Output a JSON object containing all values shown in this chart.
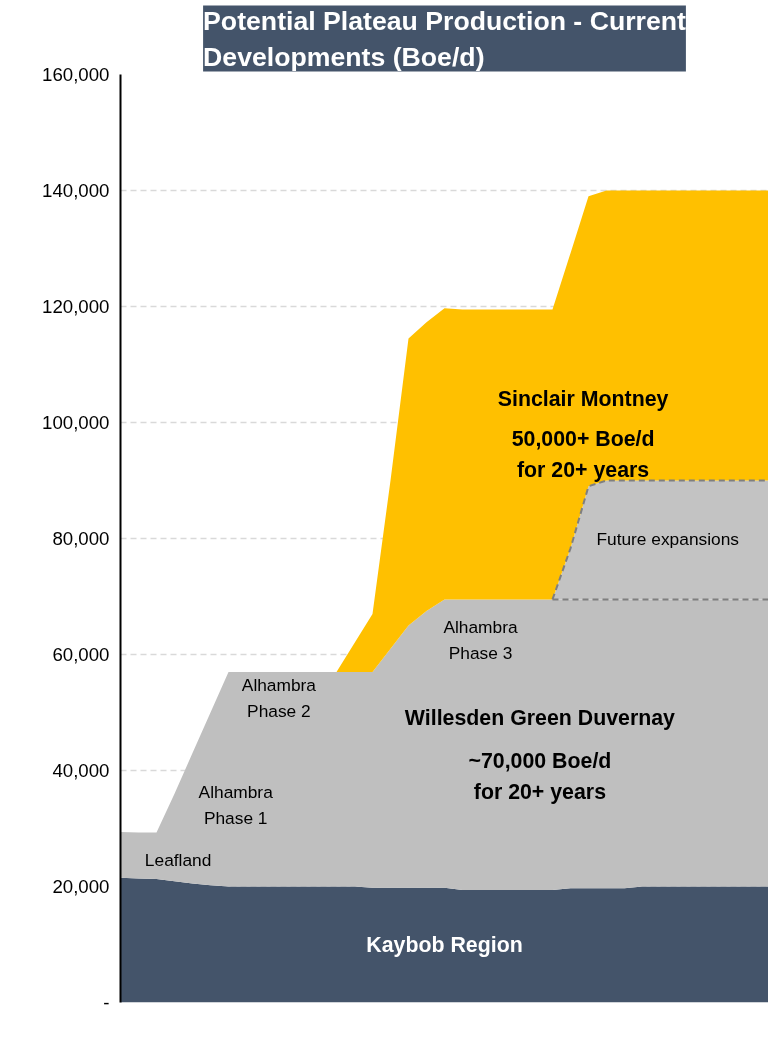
{
  "chart_data": {
    "type": "area",
    "stacked": true,
    "title": "Potential Plateau Production - Current Developments (Boe/d)",
    "categories": [
      null,
      null,
      null,
      null,
      null,
      null,
      null,
      null,
      null,
      null,
      null,
      null,
      null,
      null,
      null,
      null,
      null,
      null,
      null,
      null,
      null,
      null,
      null,
      null,
      null,
      null,
      null,
      null,
      null,
      null,
      null,
      null,
      null,
      null,
      null,
      null,
      null
    ],
    "series": [
      {
        "name": "Kaybob Region",
        "color": "#44546a",
        "values": [
          21500,
          21400,
          21300,
          20900,
          20500,
          20200,
          20000,
          20000,
          20000,
          20000,
          20000,
          20000,
          20000,
          20000,
          19800,
          19800,
          19800,
          19800,
          19800,
          19400,
          19400,
          19400,
          19400,
          19400,
          19400,
          19700,
          19700,
          19700,
          19700,
          20000,
          20000,
          20000,
          20000,
          20000,
          20000,
          20000,
          20000
        ]
      },
      {
        "name": "Willesden Green Duvernay",
        "color": "#bfbfbf",
        "values": [
          7900,
          7900,
          8000,
          15100,
          22500,
          29800,
          37000,
          37000,
          37000,
          37000,
          37000,
          37000,
          37000,
          37000,
          37200,
          41200,
          45200,
          47700,
          49700,
          50100,
          50100,
          50100,
          50100,
          50100,
          50100,
          49800,
          49800,
          49800,
          49800,
          49500,
          49500,
          49500,
          49500,
          49500,
          49500,
          49500,
          49500
        ]
      },
      {
        "name": "Future expansions",
        "color": "#c3c3c3",
        "line_style": "dashed",
        "values": [
          0,
          0,
          0,
          0,
          0,
          0,
          0,
          0,
          0,
          0,
          0,
          0,
          0,
          0,
          0,
          0,
          0,
          0,
          0,
          0,
          0,
          0,
          0,
          0,
          0,
          8800,
          19500,
          20500,
          20500,
          20500,
          20500,
          20500,
          20500,
          20500,
          20500,
          20500,
          20500
        ]
      },
      {
        "name": "Sinclair Montney",
        "color": "#ffc000",
        "values": [
          0,
          0,
          0,
          0,
          0,
          0,
          0,
          0,
          0,
          0,
          0,
          0,
          0,
          5000,
          10000,
          29000,
          49500,
          49800,
          50200,
          50000,
          50000,
          50000,
          50000,
          50000,
          50000,
          50900,
          50000,
          50000,
          50000,
          50000,
          50000,
          50000,
          50000,
          50000,
          50000,
          50000,
          50000
        ]
      }
    ],
    "ylim": [
      0,
      160000
    ],
    "yticks": [
      {
        "value": 0,
        "label": "-"
      },
      {
        "value": 20000,
        "label": "20,000"
      },
      {
        "value": 40000,
        "label": "40,000"
      },
      {
        "value": 60000,
        "label": "60,000"
      },
      {
        "value": 80000,
        "label": "80,000"
      },
      {
        "value": 100000,
        "label": "100,000"
      },
      {
        "value": 120000,
        "label": "120,000"
      },
      {
        "value": 140000,
        "label": "140,000"
      },
      {
        "value": 160000,
        "label": "160,000"
      }
    ],
    "grid": "y",
    "legend": false,
    "tick_labels": "y",
    "annotations": [
      "~70,000 Boe/d\nfor 20+ years",
      "50,000+ Boe/d\nfor 20+ years",
      "Leafland",
      "Alhambra\nPhase 1",
      "Alhambra\nPhase 2",
      "Alhambra\nPhase 3"
    ]
  }
}
